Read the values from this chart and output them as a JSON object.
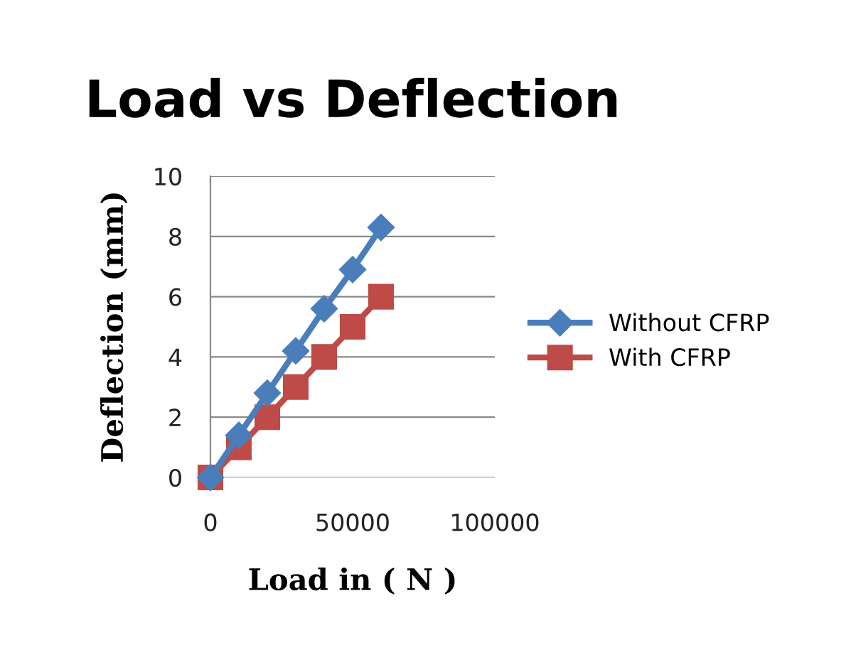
{
  "chart_data": {
    "type": "line",
    "title": "Load vs Deflection",
    "xlabel": "Load in ( N )",
    "ylabel": "Deflection (mm)",
    "x": [
      0,
      10000,
      20000,
      30000,
      40000,
      50000,
      60000
    ],
    "series": [
      {
        "name": "Without CFRP",
        "color": "#4a7ebb",
        "marker": "diamond",
        "values": [
          0,
          1.4,
          2.8,
          4.2,
          5.6,
          6.9,
          8.3
        ]
      },
      {
        "name": "With CFRP",
        "color": "#be4b48",
        "marker": "square",
        "values": [
          0,
          1,
          2,
          3,
          4,
          5,
          6
        ]
      }
    ],
    "xlim": [
      0,
      100000
    ],
    "xticks": [
      0,
      50000,
      100000
    ],
    "ylim": [
      0,
      10
    ],
    "yticks": [
      0,
      2,
      4,
      6,
      8,
      10
    ],
    "grid": "y",
    "legend": "right",
    "line_style": "solid"
  }
}
